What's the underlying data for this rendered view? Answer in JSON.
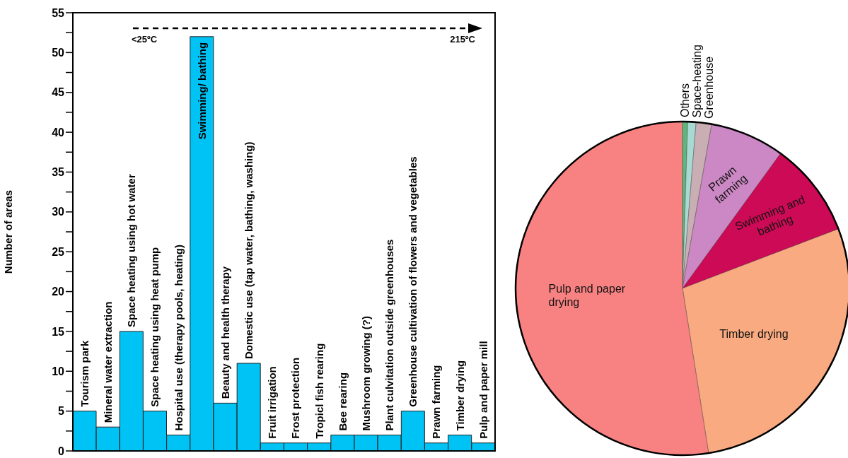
{
  "chart_data": [
    {
      "type": "bar",
      "ylabel": "Number of areas",
      "categories": [
        "Tourism park",
        "Mineral water extraction",
        "Space heating using hot water",
        "Space heating using  heat pump",
        "Hospital use (therapy pools, heating)",
        "Swimming/ bathing",
        "Beauty and health therapy",
        "Domestic use (tap water, bathing, washing)",
        "Fruit irrigation",
        "Frost protection",
        "Tropicl fish rearing",
        "Bee rearing",
        "Mushroom growing (?)",
        "Plant culvitation outside greenhouses",
        "Greenhouse cultivation of flowers and vegetables",
        "Prawn farming",
        "Timber drying",
        "Pulp and paper mill"
      ],
      "values": [
        5,
        3,
        15,
        5,
        2,
        52,
        6,
        11,
        1,
        1,
        1,
        2,
        2,
        2,
        5,
        1,
        2,
        1
      ],
      "color": "#00c3f5",
      "ylim": [
        0,
        55
      ],
      "yticks": [
        0,
        {
          "value": 2.5,
          "label": null
        },
        5,
        {
          "value": 7.5,
          "label": null
        },
        10,
        {
          "value": 12.5,
          "label": null
        },
        15,
        {
          "value": 17.5,
          "label": null
        },
        20,
        {
          "value": 22.5,
          "label": null
        },
        25,
        {
          "value": 27.5,
          "label": null
        },
        30,
        {
          "value": 32.5,
          "label": null
        },
        35,
        {
          "value": 37.5,
          "label": null
        },
        40,
        {
          "value": 42.5,
          "label": null
        },
        45,
        {
          "value": 47.5,
          "label": null
        },
        50,
        {
          "value": 52.5,
          "label": null
        },
        55
      ],
      "tick_labels": "y",
      "annotations": [
        "<25ºC",
        "215ºC"
      ]
    },
    {
      "type": "pie",
      "categories": [
        "Others",
        "Space-heating",
        "Greenhouse",
        "Prawn farming",
        "Swimming and bathing",
        "Timber drying",
        "Pulp and paper drying"
      ],
      "values": [
        0.5,
        0.8,
        1.5,
        7.2,
        9.2,
        28.3,
        52.5
      ],
      "colors": [
        "#5cb87a",
        "#a9d9d3",
        "#c9afb3",
        "#cc88c4",
        "#cc0a55",
        "#f9aa80",
        "#f88282"
      ]
    }
  ]
}
